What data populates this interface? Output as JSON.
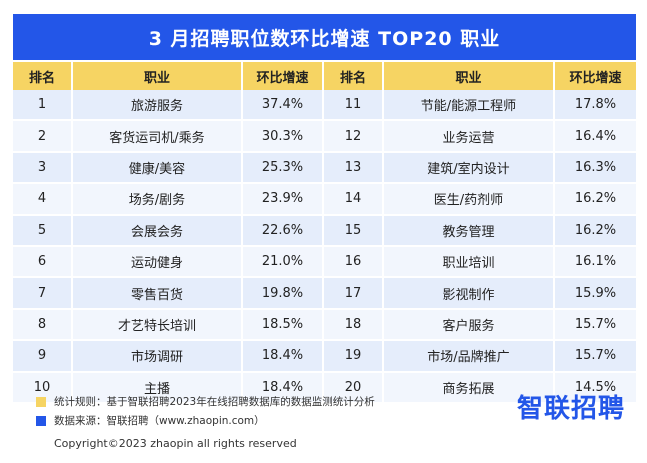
{
  "title": "3 月招聘职位数环比增速 TOP20 职业",
  "table": {
    "headers": [
      "排名",
      "职业",
      "环比增速",
      "排名",
      "职业",
      "环比增速"
    ],
    "rows": [
      {
        "r1": "1",
        "j1": "旅游服务",
        "p1": "37.4%",
        "r2": "11",
        "j2": "节能/能源工程师",
        "p2": "17.8%"
      },
      {
        "r1": "2",
        "j1": "客货运司机/乘务",
        "p1": "30.3%",
        "r2": "12",
        "j2": "业务运营",
        "p2": "16.4%"
      },
      {
        "r1": "3",
        "j1": "健康/美容",
        "p1": "25.3%",
        "r2": "13",
        "j2": "建筑/室内设计",
        "p2": "16.3%"
      },
      {
        "r1": "4",
        "j1": "场务/剧务",
        "p1": "23.9%",
        "r2": "14",
        "j2": "医生/药剂师",
        "p2": "16.2%"
      },
      {
        "r1": "5",
        "j1": "会展会务",
        "p1": "22.6%",
        "r2": "15",
        "j2": "教务管理",
        "p2": "16.2%"
      },
      {
        "r1": "6",
        "j1": "运动健身",
        "p1": "21.0%",
        "r2": "16",
        "j2": "职业培训",
        "p2": "16.1%"
      },
      {
        "r1": "7",
        "j1": "零售百货",
        "p1": "19.8%",
        "r2": "17",
        "j2": "影视制作",
        "p2": "15.9%"
      },
      {
        "r1": "8",
        "j1": "才艺特长培训",
        "p1": "18.5%",
        "r2": "18",
        "j2": "客户服务",
        "p2": "15.7%"
      },
      {
        "r1": "9",
        "j1": "市场调研",
        "p1": "18.4%",
        "r2": "19",
        "j2": "市场/品牌推广",
        "p2": "15.7%"
      },
      {
        "r1": "10",
        "j1": "主播",
        "p1": "18.4%",
        "r2": "20",
        "j2": "商务拓展",
        "p2": "14.5%"
      }
    ]
  },
  "notes": {
    "rule": "统计规则：基于智联招聘2023年在线招聘数据库的数据监测统计分析",
    "source": "数据来源：智联招聘（www.zhaopin.com）",
    "rule_color": "#f6d463",
    "source_color": "#2356e8"
  },
  "brand": "智联招聘",
  "copyright": "Copyright©2023 zhaopin all rights reserved"
}
